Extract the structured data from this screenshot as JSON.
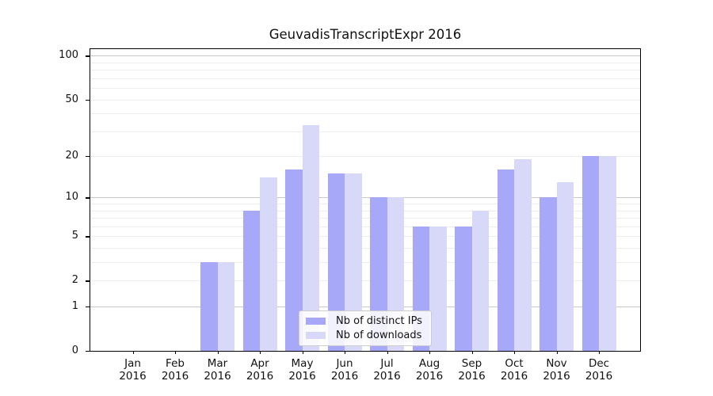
{
  "chart_data": {
    "type": "bar",
    "title": "GeuvadisTranscriptExpr 2016",
    "year": "2016",
    "months": [
      "Jan",
      "Feb",
      "Mar",
      "Apr",
      "May",
      "Jun",
      "Jul",
      "Aug",
      "Sep",
      "Oct",
      "Nov",
      "Dec"
    ],
    "series": [
      {
        "name": "Nb of distinct IPs",
        "color": "#a8a8f8",
        "values": [
          0,
          0,
          3,
          8,
          16,
          15,
          10,
          6,
          6,
          16,
          10,
          20
        ]
      },
      {
        "name": "Nb of downloads",
        "color": "#d8d8f8",
        "values": [
          0,
          0,
          3,
          14,
          33,
          15,
          10,
          6,
          8,
          19,
          13,
          20
        ]
      }
    ],
    "y_scale": "log1p",
    "y_ticks": [
      0,
      1,
      2,
      5,
      10,
      20,
      50,
      100
    ],
    "y_minor_gridlines": [
      2,
      3,
      4,
      5,
      6,
      7,
      8,
      9,
      20,
      30,
      40,
      50,
      60,
      70,
      80,
      90
    ],
    "y_major_gridlines": [
      1,
      10,
      100
    ],
    "ylim": [
      0,
      111
    ],
    "grid": true,
    "legend_position": "bottom-center",
    "colors": {
      "major_grid": "#c8c8c8",
      "minor_grid": "#ededed",
      "axis": "#000000",
      "background": "#ffffff"
    }
  }
}
